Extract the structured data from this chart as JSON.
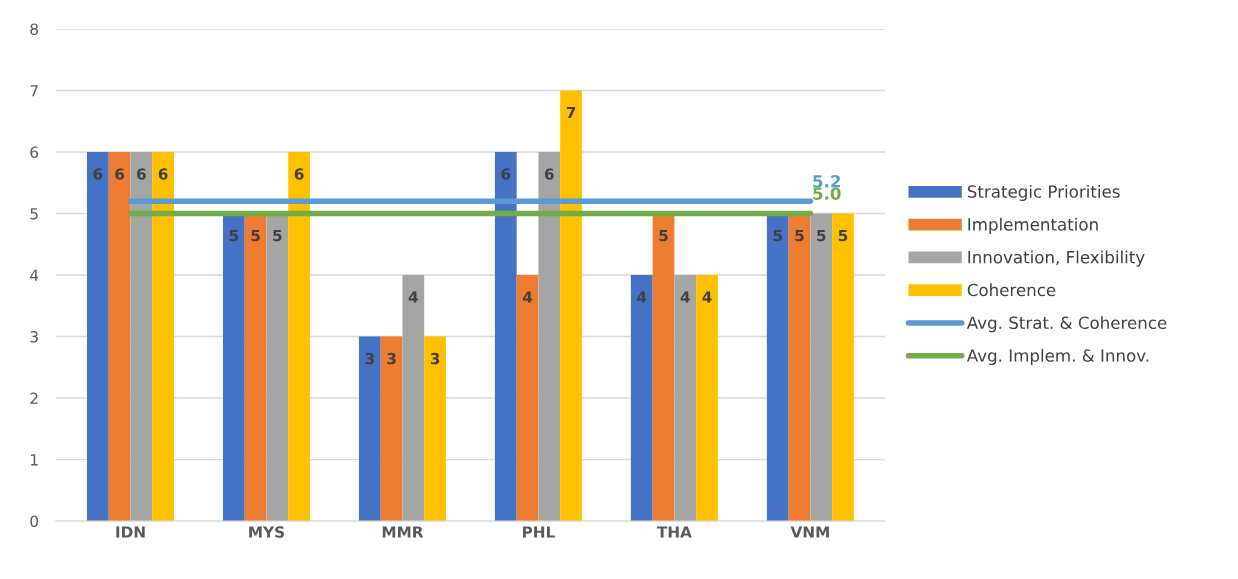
{
  "chart_data": {
    "type": "bar",
    "categories": [
      "IDN",
      "MYS",
      "MMR",
      "PHL",
      "THA",
      "VNM"
    ],
    "series": [
      {
        "name": "Strategic Priorities",
        "color": "#4472c4",
        "values": [
          6,
          5,
          3,
          6,
          4,
          5
        ],
        "value_labels": [
          "6",
          "5",
          "3",
          "6",
          "4",
          "5"
        ]
      },
      {
        "name": "Implementation",
        "color": "#ed7d31",
        "values": [
          6,
          5,
          3,
          4,
          5,
          5
        ],
        "value_labels": [
          "6",
          "5",
          "3",
          "4",
          "5",
          "5"
        ]
      },
      {
        "name": "Innovation, Flexibility",
        "color": "#a5a5a5",
        "values": [
          6,
          5,
          4,
          6,
          4,
          5
        ],
        "value_labels": [
          "6",
          "5",
          "4",
          "6",
          "4",
          "5"
        ]
      },
      {
        "name": "Coherence",
        "color": "#ffc000",
        "values": [
          6,
          6,
          3,
          7,
          4,
          5
        ],
        "value_labels": [
          "6",
          "6",
          "3",
          "7",
          "4",
          "5"
        ]
      },
      {
        "name": "Avg. Strat. & Coherence",
        "type": "line",
        "color": "#5b9bd5",
        "values": [
          5.2,
          5.2,
          5.2,
          5.2,
          5.2,
          5.2
        ],
        "value_labels": [
          null,
          null,
          null,
          null,
          null,
          "5.2"
        ]
      },
      {
        "name": "Avg. Implem. & Innov.",
        "type": "line",
        "color": "#70ad47",
        "values": [
          5.0,
          5.0,
          5.0,
          5.0,
          5.0,
          5.0
        ],
        "value_labels": [
          null,
          null,
          null,
          null,
          null,
          "5.0"
        ]
      }
    ],
    "ylim": [
      0,
      8
    ],
    "yticks": [
      0,
      1,
      2,
      3,
      4,
      5,
      6,
      7,
      8
    ],
    "grid": "y",
    "legend": "right",
    "marker": "none",
    "line_style": "solid"
  }
}
